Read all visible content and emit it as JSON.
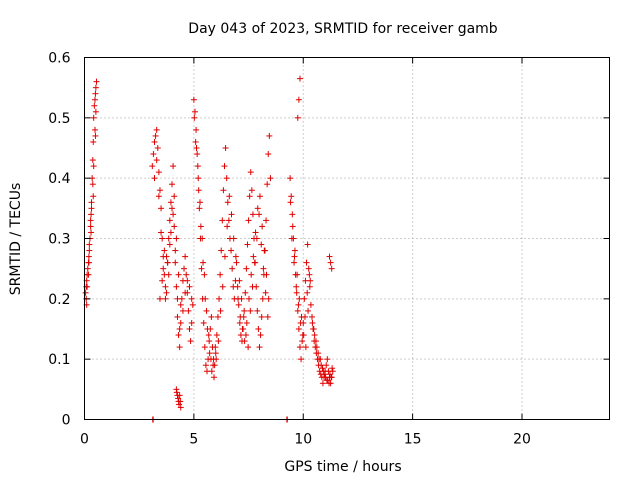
{
  "chart_data": {
    "type": "scatter",
    "title": "Day 043 of 2023, SRMTID for receiver gamb",
    "xlabel": "GPS time / hours",
    "ylabel": "SRMTID / TECUs",
    "xlim": [
      0,
      24
    ],
    "ylim": [
      0,
      0.6
    ],
    "xticks": [
      0,
      5,
      10,
      15,
      20
    ],
    "xtick_labels": [
      "0",
      "5",
      "10",
      "15",
      "20"
    ],
    "yticks": [
      0,
      0.1,
      0.2,
      0.3,
      0.4,
      0.5,
      0.6
    ],
    "ytick_labels": [
      "0",
      "0.1",
      "0.2",
      "0.3",
      "0.4",
      "0.5",
      "0.6"
    ],
    "grid": true,
    "marker": "+",
    "color": "#e00000",
    "series": [
      {
        "name": "gamb",
        "x": [
          0.05,
          0.08,
          0.1,
          0.12,
          0.15,
          0.18,
          0.2,
          0.22,
          0.25,
          0.28,
          0.3,
          0.32,
          0.35,
          0.38,
          0.4,
          0.42,
          0.45,
          0.48,
          0.5,
          0.52,
          0.55,
          0.08,
          0.12,
          0.18,
          0.22,
          0.28,
          0.32,
          0.38,
          0.42,
          0.48,
          0.52,
          0.1,
          0.2,
          0.3,
          0.4,
          0.5,
          3.1,
          3.15,
          3.2,
          3.25,
          3.3,
          3.35,
          3.4,
          3.45,
          3.5,
          3.55,
          3.6,
          3.65,
          3.7,
          3.75,
          3.8,
          3.85,
          3.9,
          3.95,
          4.0,
          4.05,
          4.1,
          4.15,
          4.2,
          4.25,
          4.3,
          4.35,
          4.4,
          4.45,
          4.5,
          4.55,
          4.6,
          4.65,
          4.7,
          4.75,
          4.8,
          4.85,
          4.9,
          4.95,
          3.2,
          3.3,
          3.4,
          3.5,
          3.6,
          3.7,
          3.8,
          3.9,
          4.0,
          4.1,
          4.2,
          4.3,
          4.4,
          4.5,
          4.6,
          4.7,
          4.8,
          4.9,
          3.45,
          3.55,
          3.65,
          3.75,
          3.85,
          3.95,
          4.05,
          4.15,
          4.25,
          4.35,
          4.2,
          4.25,
          4.3,
          4.35,
          4.4,
          4.22,
          4.28,
          4.32,
          4.38,
          5.0,
          5.05,
          5.1,
          5.15,
          5.2,
          5.25,
          5.3,
          5.35,
          5.4,
          5.45,
          5.5,
          5.55,
          5.6,
          5.65,
          5.7,
          5.75,
          5.8,
          5.85,
          5.9,
          5.95,
          6.0,
          6.05,
          6.1,
          6.15,
          6.2,
          6.25,
          6.3,
          6.35,
          6.4,
          6.45,
          6.5,
          6.55,
          6.6,
          6.65,
          6.7,
          6.75,
          6.8,
          6.85,
          6.9,
          6.95,
          5.02,
          5.12,
          5.22,
          5.32,
          5.42,
          5.52,
          5.62,
          5.72,
          5.82,
          5.92,
          6.02,
          6.12,
          6.22,
          6.32,
          6.42,
          6.52,
          6.62,
          6.72,
          6.82,
          6.92,
          5.08,
          5.18,
          5.28,
          5.38,
          5.48,
          5.58,
          5.68,
          5.78,
          5.88,
          5.98,
          7.0,
          7.05,
          7.1,
          7.15,
          7.2,
          7.25,
          7.3,
          7.35,
          7.4,
          7.45,
          7.5,
          7.55,
          7.6,
          7.65,
          7.7,
          7.75,
          7.8,
          7.85,
          7.9,
          7.95,
          8.0,
          8.05,
          8.1,
          8.15,
          8.2,
          8.25,
          8.3,
          8.35,
          8.4,
          8.45,
          8.5,
          7.02,
          7.12,
          7.22,
          7.32,
          7.42,
          7.52,
          7.62,
          7.72,
          7.82,
          7.92,
          8.02,
          8.12,
          8.22,
          8.32,
          8.42,
          7.08,
          7.18,
          7.28,
          7.38,
          7.48,
          7.58,
          7.68,
          7.78,
          7.88,
          7.98,
          8.08,
          8.18,
          8.28,
          8.38,
          9.4,
          9.45,
          9.5,
          9.55,
          9.6,
          9.65,
          9.7,
          9.75,
          9.8,
          9.85,
          9.9,
          9.95,
          10.0,
          10.05,
          10.1,
          10.15,
          10.2,
          10.25,
          10.3,
          10.35,
          9.42,
          9.52,
          9.62,
          9.72,
          9.82,
          9.92,
          10.02,
          10.12,
          10.22,
          10.32,
          9.48,
          9.58,
          9.68,
          9.78,
          9.88,
          9.98,
          10.08,
          10.18,
          10.28,
          10.4,
          10.45,
          10.5,
          10.55,
          10.6,
          10.65,
          10.7,
          10.75,
          10.8,
          10.85,
          10.9,
          10.95,
          11.0,
          11.05,
          11.1,
          11.15,
          11.2,
          11.25,
          11.3,
          11.35,
          10.42,
          10.52,
          10.62,
          10.72,
          10.82,
          10.92,
          11.02,
          11.12,
          11.22,
          11.32,
          10.48,
          10.58,
          10.68,
          10.78,
          10.88,
          10.98,
          11.08,
          11.18,
          11.28,
          9.75,
          9.8,
          9.85,
          11.2,
          11.25,
          11.3,
          3.12,
          3.14,
          9.25,
          9.27
        ],
        "y": [
          0.21,
          0.22,
          0.23,
          0.24,
          0.25,
          0.26,
          0.27,
          0.28,
          0.3,
          0.32,
          0.34,
          0.36,
          0.4,
          0.43,
          0.46,
          0.5,
          0.52,
          0.53,
          0.54,
          0.55,
          0.56,
          0.2,
          0.22,
          0.24,
          0.29,
          0.33,
          0.35,
          0.39,
          0.42,
          0.48,
          0.51,
          0.19,
          0.26,
          0.31,
          0.37,
          0.47,
          0.42,
          0.44,
          0.46,
          0.47,
          0.48,
          0.45,
          0.41,
          0.38,
          0.35,
          0.3,
          0.27,
          0.24,
          0.2,
          0.21,
          0.26,
          0.3,
          0.33,
          0.36,
          0.39,
          0.42,
          0.32,
          0.28,
          0.22,
          0.17,
          0.14,
          0.12,
          0.16,
          0.2,
          0.23,
          0.25,
          0.27,
          0.24,
          0.21,
          0.18,
          0.15,
          0.13,
          0.16,
          0.19,
          0.4,
          0.43,
          0.37,
          0.31,
          0.25,
          0.22,
          0.26,
          0.29,
          0.35,
          0.37,
          0.3,
          0.24,
          0.19,
          0.18,
          0.21,
          0.23,
          0.22,
          0.2,
          0.2,
          0.23,
          0.28,
          0.27,
          0.24,
          0.31,
          0.34,
          0.26,
          0.2,
          0.15,
          0.05,
          0.04,
          0.03,
          0.04,
          0.02,
          0.045,
          0.035,
          0.025,
          0.03,
          0.53,
          0.51,
          0.48,
          0.44,
          0.4,
          0.35,
          0.3,
          0.25,
          0.2,
          0.16,
          0.12,
          0.09,
          0.08,
          0.1,
          0.13,
          0.15,
          0.17,
          0.12,
          0.1,
          0.09,
          0.11,
          0.14,
          0.17,
          0.2,
          0.24,
          0.28,
          0.33,
          0.38,
          0.42,
          0.45,
          0.4,
          0.36,
          0.33,
          0.3,
          0.28,
          0.25,
          0.22,
          0.2,
          0.23,
          0.26,
          0.5,
          0.45,
          0.38,
          0.32,
          0.26,
          0.2,
          0.15,
          0.11,
          0.08,
          0.07,
          0.1,
          0.13,
          0.18,
          0.22,
          0.27,
          0.32,
          0.37,
          0.34,
          0.3,
          0.27,
          0.46,
          0.42,
          0.36,
          0.3,
          0.24,
          0.18,
          0.14,
          0.1,
          0.09,
          0.12,
          0.22,
          0.19,
          0.16,
          0.14,
          0.13,
          0.15,
          0.18,
          0.21,
          0.25,
          0.29,
          0.33,
          0.37,
          0.41,
          0.38,
          0.34,
          0.3,
          0.26,
          0.22,
          0.18,
          0.15,
          0.12,
          0.14,
          0.17,
          0.2,
          0.24,
          0.28,
          0.33,
          0.39,
          0.44,
          0.47,
          0.4,
          0.2,
          0.17,
          0.15,
          0.13,
          0.16,
          0.2,
          0.24,
          0.27,
          0.31,
          0.35,
          0.37,
          0.32,
          0.28,
          0.24,
          0.2,
          0.23,
          0.2,
          0.17,
          0.14,
          0.12,
          0.18,
          0.22,
          0.26,
          0.3,
          0.34,
          0.29,
          0.25,
          0.21,
          0.17,
          0.4,
          0.37,
          0.34,
          0.3,
          0.27,
          0.24,
          0.21,
          0.18,
          0.15,
          0.12,
          0.1,
          0.13,
          0.16,
          0.2,
          0.23,
          0.26,
          0.29,
          0.25,
          0.22,
          0.19,
          0.36,
          0.32,
          0.28,
          0.24,
          0.2,
          0.17,
          0.14,
          0.12,
          0.18,
          0.23,
          0.3,
          0.26,
          0.22,
          0.19,
          0.16,
          0.14,
          0.17,
          0.21,
          0.24,
          0.17,
          0.15,
          0.13,
          0.12,
          0.11,
          0.1,
          0.09,
          0.08,
          0.075,
          0.07,
          0.06,
          0.07,
          0.08,
          0.09,
          0.1,
          0.08,
          0.07,
          0.06,
          0.07,
          0.08,
          0.16,
          0.14,
          0.12,
          0.1,
          0.09,
          0.08,
          0.07,
          0.065,
          0.075,
          0.085,
          0.15,
          0.13,
          0.11,
          0.1,
          0.085,
          0.075,
          0.065,
          0.06,
          0.07,
          0.5,
          0.53,
          0.565,
          0.27,
          0.26,
          0.25,
          0.0,
          0.0,
          0.0,
          0.0
        ]
      }
    ]
  }
}
